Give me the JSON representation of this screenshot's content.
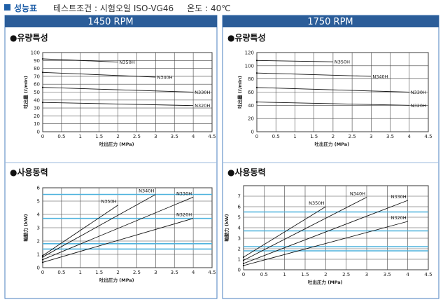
{
  "header": {
    "title": "성능표",
    "condition": "테스트조건 : 시험오일 ISO-VG46     온도 : 40℃"
  },
  "colors": {
    "accent": "#1f5fa8",
    "panel_header": "#2b5d99",
    "border": "#4a7fbf",
    "blue_line": "#4fb3de"
  },
  "panels": [
    {
      "title": "1450 RPM",
      "flow_title": "●유량특성",
      "power_title": "●사용동력"
    },
    {
      "title": "1750 RPM",
      "flow_title": "●유량특성",
      "power_title": "●사용동력"
    }
  ],
  "chart_data": [
    {
      "type": "line",
      "panel": 0,
      "title": "1450 RPM 유량특성",
      "xlabel": "吐出圧力 (MPa)",
      "ylabel": "吐出量 (ℓ/min)",
      "xlim": [
        0,
        4.5
      ],
      "ylim": [
        0,
        100
      ],
      "xticks": [
        0,
        0.5,
        1,
        1.5,
        2,
        2.5,
        3,
        3.5,
        4,
        4.5
      ],
      "yticks": [
        0,
        10,
        20,
        30,
        40,
        50,
        60,
        70,
        80,
        90,
        100
      ],
      "grid": true,
      "series": [
        {
          "name": "N350H",
          "x": [
            0,
            2.0
          ],
          "y": [
            92,
            88
          ]
        },
        {
          "name": "N340H",
          "x": [
            0,
            3.0
          ],
          "y": [
            75,
            69
          ]
        },
        {
          "name": "N330H",
          "x": [
            0,
            4.0
          ],
          "y": [
            56,
            50
          ]
        },
        {
          "name": "N320H",
          "x": [
            0,
            4.0
          ],
          "y": [
            37,
            33
          ]
        }
      ]
    },
    {
      "type": "line",
      "panel": 0,
      "title": "1450 RPM 사용동력",
      "xlabel": "吐出圧力 (MPa)",
      "ylabel": "軸動力 (kW)",
      "xlim": [
        0,
        4.5
      ],
      "ylim": [
        0,
        6
      ],
      "xticks": [
        0,
        0.5,
        1,
        1.5,
        2,
        2.5,
        3,
        3.5,
        4,
        4.5
      ],
      "yticks": [
        0,
        1,
        2,
        3,
        4,
        5,
        6
      ],
      "grid": true,
      "blue_lines": [
        1.4,
        1.8,
        3.7,
        5.5
      ],
      "series": [
        {
          "name": "N350H",
          "x": [
            0,
            2.0
          ],
          "y": [
            0.9,
            4.7
          ]
        },
        {
          "name": "N340H",
          "x": [
            0,
            3.0
          ],
          "y": [
            0.8,
            5.5
          ]
        },
        {
          "name": "N330H",
          "x": [
            0,
            4.0
          ],
          "y": [
            0.6,
            5.3
          ]
        },
        {
          "name": "N320H",
          "x": [
            0,
            4.0
          ],
          "y": [
            0.4,
            3.7
          ]
        }
      ]
    },
    {
      "type": "line",
      "panel": 1,
      "title": "1750 RPM 유량특성",
      "xlabel": "吐出圧力 (MPa)",
      "ylabel": "吐出量 (ℓ/min)",
      "xlim": [
        0,
        4.5
      ],
      "ylim": [
        0,
        120
      ],
      "xticks": [
        0,
        0.5,
        1,
        1.5,
        2,
        2.5,
        3,
        3.5,
        4,
        4.5
      ],
      "yticks": [
        0,
        20,
        40,
        60,
        80,
        100,
        120
      ],
      "grid": true,
      "series": [
        {
          "name": "N350H",
          "x": [
            0,
            2.0
          ],
          "y": [
            108,
            106
          ]
        },
        {
          "name": "N340H",
          "x": [
            0,
            3.0
          ],
          "y": [
            89,
            84
          ]
        },
        {
          "name": "N330H",
          "x": [
            0,
            4.0
          ],
          "y": [
            67,
            60
          ]
        },
        {
          "name": "N320H",
          "x": [
            0,
            4.0
          ],
          "y": [
            45,
            40
          ]
        }
      ]
    },
    {
      "type": "line",
      "panel": 1,
      "title": "1750 RPM 사용동력",
      "xlabel": "吐出圧力 (MPa)",
      "ylabel": "軸動力 (kW)",
      "xlim": [
        0,
        4.5
      ],
      "ylim": [
        0,
        8
      ],
      "xticks": [
        0,
        0.5,
        1,
        1.5,
        2,
        2.5,
        3,
        3.5,
        4,
        4.5
      ],
      "yticks": [
        0,
        1,
        2,
        3,
        4,
        5,
        6,
        7
      ],
      "grid": true,
      "blue_lines": [
        1.8,
        2.2,
        3.7,
        5.5
      ],
      "series": [
        {
          "name": "N350H",
          "x": [
            0,
            2.0
          ],
          "y": [
            1.2,
            6.0
          ]
        },
        {
          "name": "N340H",
          "x": [
            0,
            3.0
          ],
          "y": [
            0.9,
            6.9
          ]
        },
        {
          "name": "N330H",
          "x": [
            0,
            4.0
          ],
          "y": [
            0.6,
            6.6
          ]
        },
        {
          "name": "N320H",
          "x": [
            0,
            4.0
          ],
          "y": [
            0.4,
            4.6
          ]
        }
      ]
    }
  ]
}
